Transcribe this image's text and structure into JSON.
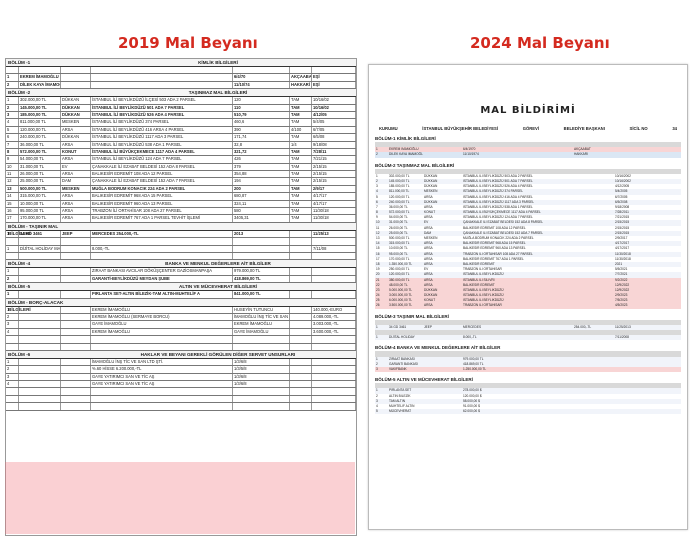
{
  "titles": {
    "left": "2019 Mal Beyanı",
    "right": "2024 Mal Beyanı"
  },
  "colors": {
    "title": "#d42a1f",
    "highlight_pink": "#f07882"
  },
  "left_doc": {
    "sections": [
      {
        "sec": "BÖLÜM -1",
        "title": "KİMLİK BİLGİLERİ"
      },
      {
        "sec": "BÖLÜM -2",
        "title": "TAŞINMAZ MAL BİLGİLERİ"
      },
      {
        "sec": "BÖLÜM - TAŞINIR MAL BİLGİLERİ",
        "title": ""
      },
      {
        "sec": "BÖLÜM -4",
        "title": "BANKA VE MENKUL DEĞERLERE AİT BİLGİLER"
      },
      {
        "sec": "BÖLÜM -5",
        "title": "ALTIN VE MÜCEVHERAT BİLGİLERİ"
      },
      {
        "sec": "BÖLÜM - BORÇ-ALACAK BİLGİLERİ",
        "title": ""
      },
      {
        "sec": "BÖLÜM -6",
        "title": "HAKLAR VE BEYANI GEREKLİ GÖRÜLEN DİĞER SERVET UNSURLARI"
      }
    ],
    "identity": [
      {
        "no": "1",
        "name": "EKREM İMAMOĞLU",
        "date": "6/4/70",
        "place": "AKÇAABAT",
        "role": "EŞİ"
      },
      {
        "no": "2",
        "name": "DİLEK KAYA İMAMOĞLU",
        "date": "11/10/74",
        "place": "HAKKARİ",
        "role": "EŞİ"
      }
    ],
    "properties": [
      {
        "no": "1",
        "price": "302.000,00 TL",
        "type": "DÜKKAN",
        "desc": "İSTANBUL İLİ BEYLİKDÜZÜ İLÇESİ 503 ADA 2 PARSEL",
        "area": "120",
        "share": "TAM",
        "date": "10/16/02"
      },
      {
        "no": "2",
        "price": "145.000,00 TL",
        "type": "DÜKKAN",
        "desc": "İSTANBUL İLİ BEYLİKDÜZÜ 501 ADA 7 PARSEL",
        "area": "110",
        "share": "TAM",
        "date": "10/16/02"
      },
      {
        "no": "3",
        "price": "185.000,00 TL",
        "type": "DÜKKAN",
        "desc": "İSTANBUL İLİ BEYLİKDÜZÜ 526 ADA 4 PARSEL",
        "area": "510,79",
        "share": "TAM",
        "date": "4/12/05"
      },
      {
        "no": "4",
        "price": "811.000,00 TL",
        "type": "MESKEN",
        "desc": "İSTANBUL İLİ BEYLİKDÜZÜ 374 PARSEL",
        "area": "460,6",
        "share": "TAM",
        "date": "5/4/05"
      },
      {
        "no": "5",
        "price": "120.000,00 TL",
        "type": "ARSA",
        "desc": "İSTANBUL İLİ BEYLİKDÜZÜ 416 ARSA 4 PARSEL",
        "area": "390",
        "share": "4/100",
        "date": "6/7/05"
      },
      {
        "no": "6",
        "price": "240.000,00 TL",
        "type": "DÜKKAN",
        "desc": "İSTANBUL İLİ BEYLİKDÜZÜ 1117 ADA 3 PARSEL",
        "area": "171,74",
        "share": "TAM",
        "date": "6/5/08"
      },
      {
        "no": "7",
        "price": "36.000,00 TL",
        "type": "ARSA",
        "desc": "İSTANBUL İLİ BEYLİKDÜZÜ 538 ADA 1 PARSEL",
        "area": "32,8",
        "share": "1/4",
        "date": "9/18/08"
      },
      {
        "no": "8",
        "price": "572.000,00 TL",
        "type": "KONUT",
        "desc": "İSTANBUL İLİ BÜYÜKÇEKMECE 1117 ADA 4 PARSEL",
        "area": "321,72",
        "share": "TAM",
        "date": "7/28/11"
      },
      {
        "no": "9",
        "price": "54.000,00 TL",
        "type": "ARSA",
        "desc": "İSTANBUL İLİ BEYLİKDÜZÜ 124 ADA 7 PARSEL",
        "area": "426",
        "share": "TAM",
        "date": "7/21/15"
      },
      {
        "no": "10",
        "price": "31.000,00 TL",
        "type": "EV",
        "desc": "ÇANAKKALE İLİ EZABAT BELDESİ 152 ADA 8 PARSEL",
        "area": "379",
        "share": "TAM",
        "date": "2/15/15"
      },
      {
        "no": "11",
        "price": "26.000,00 TL",
        "type": "ARSA",
        "desc": "BALIKESİR EDREMİT 108 ADA 12 PARSEL",
        "area": "354,88",
        "share": "TAM",
        "date": "2/15/15"
      },
      {
        "no": "12",
        "price": "25.000,00 TL",
        "type": "DAM",
        "desc": "ÇANAKKALE İLİ EZABAT BELDESİ 152 ADA 7 PARSEL",
        "area": "194",
        "share": "TAM",
        "date": "2/15/15"
      },
      {
        "no": "13",
        "price": "500.000,00 TL",
        "type": "MESKEN",
        "desc": "MUĞLA BODRUM KONACIK 224 ADA 2 PARSEL",
        "area": "200",
        "share": "TAM",
        "date": "2/9/17"
      },
      {
        "no": "14",
        "price": "315.000,00 TL",
        "type": "ARSA",
        "desc": "BALIKESİR EDREMİT 968 ADA 15 PARSEL",
        "area": "680,87",
        "share": "TAM",
        "date": "4/17/17"
      },
      {
        "no": "15",
        "price": "10.000,00 TL",
        "type": "ARSA",
        "desc": "BALIKESİR EDREMİT 960 ADA 13 PARSEL",
        "area": "324,11",
        "share": "TAM",
        "date": "4/17/17"
      },
      {
        "no": "16",
        "price": "95.000,00 TL",
        "type": "ARSA",
        "desc": "TRABZON İLİ ORTAHİSAR 108 ADA 27 PARSEL",
        "area": "580",
        "share": "TAM",
        "date": "11/30/18"
      },
      {
        "no": "17",
        "price": "170.000,00 TL",
        "type": "ARSA",
        "desc": "BALIKESİR EDREMİT 767 ADA 1 PARSEL TEVHİT İŞLEMİ",
        "area": "3405,31",
        "share": "TAM",
        "date": "11/30/18"
      }
    ],
    "vehicles": [
      {
        "no": "1",
        "plate": "34 GD 3461",
        "type": "JEEP",
        "brand": "MERCEDES",
        "price": "254.000,-TL",
        "year": "2013",
        "date": "11/25/13"
      }
    ],
    "other_assets": [
      {
        "no": "1",
        "desc": "DİJİTAL HOLİDAY MARKA ZIRAAT BANKASI",
        "value": "8.000,-TL",
        "date": "7/11/08"
      }
    ],
    "bank": [
      {
        "no": "1",
        "desc": "ZIRAAT BANKASI AVCILAR DÖKÜŞÇENTER GAZİOSMANPAŞA",
        "value": "979.000,00 TL"
      },
      {
        "no": "2",
        "desc": "GARANTİ-BEYLİKDÜZÜ MEYDAN ŞUBE",
        "value": "418.869,00 TL"
      }
    ],
    "gold": [
      {
        "no": "1",
        "desc": "PIRLANTA SET-ALTIN BİLEZİK-TAM ALTIN-MUHTELİF A",
        "value": "841.000,00 TL"
      }
    ],
    "debts": [
      {
        "no": "1",
        "desc": "EKREM İMAMOĞLU",
        "party": "HUSEYİN TUTUNCU",
        "value": "140.000,-EURO"
      },
      {
        "no": "2",
        "desc": "EKREM İMAMOĞLU (SERMAYE BORCU)",
        "party": "İMAMOĞLU İNŞ TİC VE SAN LTD ŞTİ.",
        "value": "4.089.000,-TL"
      },
      {
        "no": "3",
        "desc": "GAYE İMAMOĞLU",
        "party": "EKREM İMAMOĞLU",
        "value": "3.003.000,-TL"
      },
      {
        "no": "4",
        "desc": "EKREM İMAMOĞLU",
        "party": "GAYE İMAMOĞLU",
        "value": "3.600.000,-TL"
      }
    ],
    "rights": [
      {
        "no": "1",
        "desc": "İMAMOĞLU İNŞ TİC VE SAN LTD ŞTİ.",
        "share": "1/3/6/8"
      },
      {
        "no": "2",
        "desc": "%.60 HİSSE 6.200.000,-TL",
        "share": "1/3/5/8"
      },
      {
        "no": "3",
        "desc": "GAYE YATIRIMCI SAN VE TİC AŞ",
        "share": "1/3/6/8"
      },
      {
        "no": "4",
        "desc": "GAYE YATIRIMCI SAN VE TİC AŞ",
        "share": "1/3/6/8"
      }
    ]
  },
  "right_doc": {
    "heading": "MAL BİLDİRİMİ",
    "kurum_label": "KURUMU",
    "kurum": "İSTANBUL BÜYÜKŞEHİR BELEDİYESİ",
    "gorev_label": "GÖREVİ",
    "gorev": "BELEDİYE BAŞKANI",
    "sicil_label": "SİCİL NO",
    "sicil": "34",
    "sections": [
      "BÖLÜM-1 KİMLİK BİLGİLERİ",
      "BÖLÜM-2 TAŞINMAZ MAL BİLGİLERİ",
      "BÖLÜM-3 TAŞINIR MAL BİLGİLERİ",
      "BÖLÜM-4 BANKA VE MENKUL DEĞERLERE AİT BİLGİLER",
      "BÖLÜM-5 ALTIN VE MÜCEVHERAT BİLGİLERİ"
    ],
    "identity": [
      {
        "no": "1",
        "name": "EKREM İMAMOĞLU",
        "date": "6/4/1970",
        "place": "AKÇAABAT"
      },
      {
        "no": "2",
        "name": "DİLEK KAYA İMAMOĞLU",
        "date": "11/10/1974",
        "place": "HAKKARİ"
      }
    ],
    "properties": [
      {
        "no": "1",
        "price": "302.000,00 TL",
        "type": "DÜKKAN",
        "desc": "İSTANBUL İLİ BEYLİKDÜZÜ 503 ADA 2 PARSEL",
        "date": "10/16/2002"
      },
      {
        "no": "2",
        "price": "145.000,00 TL",
        "type": "DÜKKAN",
        "desc": "İSTANBUL İLİ BEYLİKDÜZÜ 501 ADA 7 PARSEL",
        "date": "10/16/2002"
      },
      {
        "no": "3",
        "price": "185.000,00 TL",
        "type": "DÜKKAN",
        "desc": "İSTANBUL İLİ BEYLİKDÜZÜ 526 ADA 4 PARSEL",
        "date": "4/12/2005"
      },
      {
        "no": "4",
        "price": "811.000,00 TL",
        "type": "MESKEN",
        "desc": "İSTANBUL İLİ BEYLİKDÜZÜ 374 PARSEL",
        "date": "5/4/2005"
      },
      {
        "no": "5",
        "price": "120.000,00 TL",
        "type": "ARSA",
        "desc": "İSTANBUL İLİ BEYLİKDÜZÜ 416 ADA 4 PARSEL",
        "date": "6/7/2005"
      },
      {
        "no": "6",
        "price": "240.000,00 TL",
        "type": "DÜKKAN",
        "desc": "İSTANBUL İLİ BEYLİKDÜZÜ 1117 ADA 3 PARSEL",
        "date": "6/5/2008"
      },
      {
        "no": "7",
        "price": "36.000,00 TL",
        "type": "ARSA",
        "desc": "İSTANBUL İLİ BEYLİKDÜZÜ 538 ADA 1 PARSEL",
        "date": "9/18/2008"
      },
      {
        "no": "8",
        "price": "572.000,00 TL",
        "type": "KONUT",
        "desc": "İSTANBUL İLİ BÜYÜKÇEKMECE 1117 ADA 4 PARSEL",
        "date": "7/28/2011"
      },
      {
        "no": "9",
        "price": "54.000,00 TL",
        "type": "ARSA",
        "desc": "İSTANBUL İLİ BEYLİKDÜZÜ 124 ADA 7 PARSEL",
        "date": "7/21/2015"
      },
      {
        "no": "10",
        "price": "31.000,00 TL",
        "type": "EV",
        "desc": "ÇANAKKALE İLİ EZABAT BELDESİ 152 ADA 8 PARSEL",
        "date": "2/15/2015"
      },
      {
        "no": "11",
        "price": "26.000,00 TL",
        "type": "ARSA",
        "desc": "BALIKESİR EDREMİT 108 ADA 12 PARSEL",
        "date": "2/15/2015"
      },
      {
        "no": "12",
        "price": "25.000,00 TL",
        "type": "DAM",
        "desc": "ÇANAKKALE İLİ EZABAT BELDESİ 152 ADA 7 PARSEL",
        "date": "2/15/2015"
      },
      {
        "no": "13",
        "price": "500.000,00 TL",
        "type": "MESKEN",
        "desc": "MUĞLA BODRUM KONACIK 224 ADA 2 PARSEL",
        "date": "2/9/2017"
      },
      {
        "no": "14",
        "price": "315.000,00 TL",
        "type": "ARSA",
        "desc": "BALIKESİR EDREMİT 968 ADA 15 PARSEL",
        "date": "4/17/2017"
      },
      {
        "no": "15",
        "price": "10.000,00 TL",
        "type": "ARSA",
        "desc": "BALIKESİR EDREMİT 960 ADA 13 PARSEL",
        "date": "4/17/2017"
      },
      {
        "no": "16",
        "price": "95.000,00 TL",
        "type": "ARSA",
        "desc": "TRABZON İLİ ORTAHİSAR 108 ADA 27 PARSEL",
        "date": "11/30/2018"
      },
      {
        "no": "17",
        "price": "170.000,00 TL",
        "type": "ARSA",
        "desc": "BALIKESİR EDREMİT 767 ADA 1 PARSEL",
        "date": "11/30/2018"
      },
      {
        "no": "18",
        "price": "1.350.000,00 TL",
        "type": "ARSA",
        "desc": "BALIKESİR EDREMİT",
        "date": "2021"
      },
      {
        "no": "19",
        "price": "250.000,00 TL",
        "type": "EV",
        "desc": "TRABZON İLİ ORTAHİSAR",
        "date": "5/5/2021"
      },
      {
        "no": "20",
        "price": "120.000,00 TL",
        "type": "ARSA",
        "desc": "İSTANBUL İLİ BEYLİKDÜZÜ",
        "date": "7/7/2021"
      },
      {
        "no": "21",
        "price": "380.000,00 TL",
        "type": "ARSA",
        "desc": "İSTANBUL İLİ SİLİVRİ",
        "date": "9/2/2022"
      },
      {
        "no": "22",
        "price": "48.000,00 TL",
        "type": "ARSA",
        "desc": "BALIKESİR EDREMİT",
        "date": "12/9/2022"
      },
      {
        "no": "23",
        "price": "5.000.000,00 TL",
        "type": "DÜKKAN",
        "desc": "İSTANBUL İLİ BEYLİKDÜZÜ",
        "date": "12/9/2022"
      },
      {
        "no": "24",
        "price": "3.000.000,00 TL",
        "type": "DÜKKAN",
        "desc": "İSTANBUL İLİ BEYLİKDÜZÜ",
        "date": "2/9/2023"
      },
      {
        "no": "25",
        "price": "6.000.000,00 TL",
        "type": "KONUT",
        "desc": "İSTANBUL İLİ BEYLİKDÜZÜ",
        "date": "7/5/2023"
      },
      {
        "no": "26",
        "price": "3.500.000,00 TL",
        "type": "ARSA",
        "desc": "TRABZON İLİ ORTAHİSAR",
        "date": "4/5/2023"
      }
    ],
    "vehicles": [
      {
        "no": "1",
        "plate": "34 GD 3461",
        "type": "JEEP",
        "brand": "MERCEDES",
        "price": "254.000,-TL",
        "date": "11/25/2013"
      }
    ],
    "other_assets": [
      {
        "no": "1",
        "desc": "DİJİTAL HOLİDAY",
        "value": "8.000,-TL",
        "date": "7/11/2008"
      }
    ],
    "bank": [
      {
        "no": "1",
        "desc": "ZİRAAT BANKASI",
        "value": "979.000,00 TL"
      },
      {
        "no": "2",
        "desc": "GARANTİ BANKASI",
        "value": "418.869,00 TL"
      },
      {
        "no": "3",
        "desc": "VAKIFBANK",
        "value": "1.250.000,00 TL"
      }
    ],
    "gold": [
      {
        "no": "1",
        "desc": "PIRLANTA SET",
        "value": "278.000,00 $"
      },
      {
        "no": "2",
        "desc": "ALTIN BİLEZİK",
        "value": "120.000,00 $"
      },
      {
        "no": "3",
        "desc": "TAM ALTIN",
        "value": "58.000,00 $"
      },
      {
        "no": "4",
        "desc": "MUHTELİF ALTIN",
        "value": "91.000,00 $"
      },
      {
        "no": "5",
        "desc": "MÜCEVHERAT",
        "value": "62.000,00 $"
      }
    ]
  }
}
